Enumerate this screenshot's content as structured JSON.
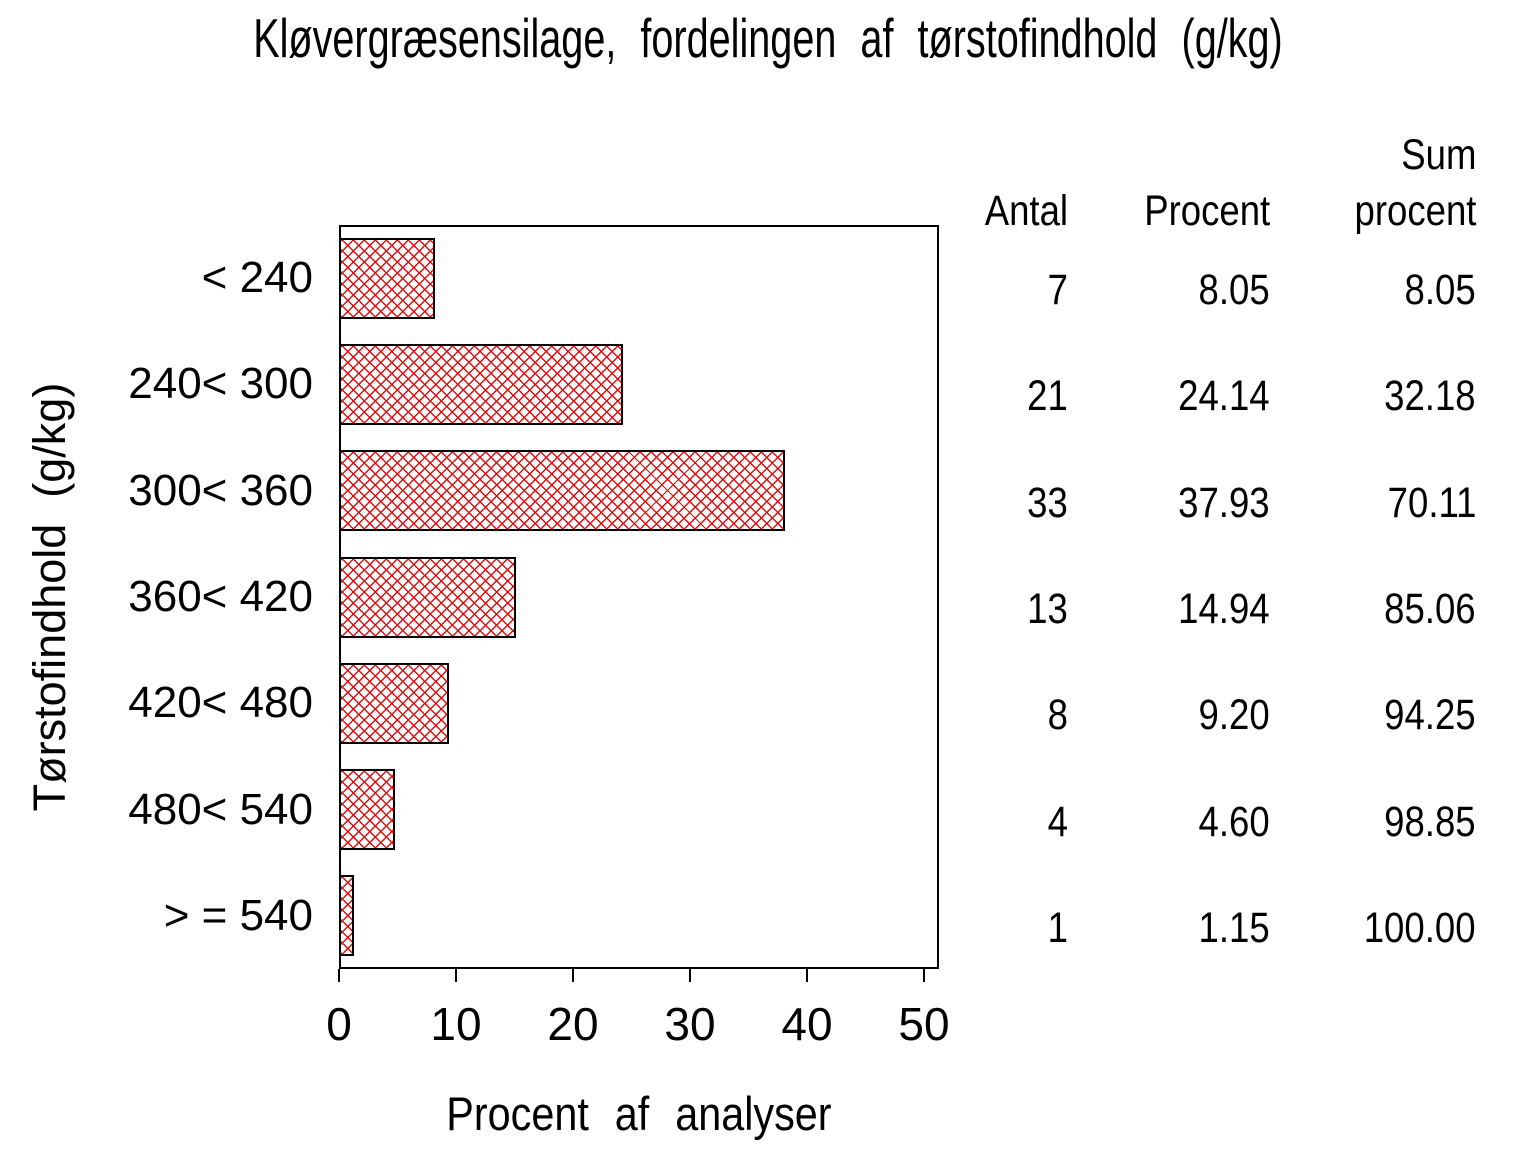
{
  "chart_data": {
    "type": "bar",
    "orientation": "horizontal",
    "title": "Kløvergræsensilage, fordelingen af tørstofindhold (g/kg)",
    "xlabel": "Procent af analyser",
    "ylabel": "Tørstofindhold (g/kg)",
    "categories": [
      "< 240",
      "240< 300",
      "300< 360",
      "360< 420",
      "420< 480",
      "480< 540",
      "> = 540"
    ],
    "values": [
      8.05,
      24.14,
      37.93,
      14.94,
      9.2,
      4.6,
      1.15
    ],
    "counts": [
      7,
      21,
      33,
      13,
      8,
      4,
      1
    ],
    "cum_values": [
      8.05,
      32.18,
      70.11,
      85.06,
      94.25,
      98.85,
      100.0
    ],
    "x_ticks": [
      0,
      10,
      20,
      30,
      40,
      50
    ],
    "x_tick_labels": [
      "0",
      "10",
      "20",
      "30",
      "40",
      "50"
    ],
    "xlim": [
      0,
      51.3
    ],
    "grid": false,
    "legend": "none",
    "bar_pattern": "crosshatch",
    "colors": {
      "bar_hatch": "#dd1111",
      "bar_border": "#000000",
      "axis": "#000000",
      "background": "#ffffff"
    }
  },
  "table": {
    "col_headers": {
      "antal": "Antal",
      "procent": "Procent",
      "sum_line1": "Sum",
      "sum_line2": "procent"
    },
    "rows": [
      {
        "antal": "7",
        "procent": "8.05",
        "sum": "8.05"
      },
      {
        "antal": "21",
        "procent": "24.14",
        "sum": "32.18"
      },
      {
        "antal": "33",
        "procent": "37.93",
        "sum": "70.11"
      },
      {
        "antal": "13",
        "procent": "14.94",
        "sum": "85.06"
      },
      {
        "antal": "8",
        "procent": "9.20",
        "sum": "94.25"
      },
      {
        "antal": "4",
        "procent": "4.60",
        "sum": "98.85"
      },
      {
        "antal": "1",
        "procent": "1.15",
        "sum": "100.00"
      }
    ]
  }
}
